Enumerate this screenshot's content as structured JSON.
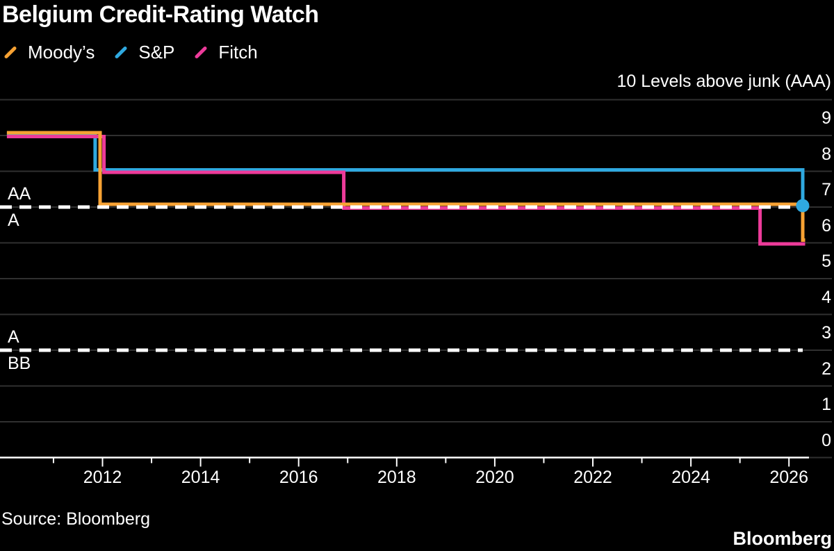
{
  "header": {
    "title": "Belgium Credit-Rating Watch"
  },
  "chart_data": {
    "type": "line",
    "title": "Belgium Credit-Rating Watch",
    "right_axis_label": "10 Levels above junk (AAA)",
    "ylabel": "Levels above junk (AAA = 10)",
    "xlabel": "",
    "ylim": [
      0,
      10.4
    ],
    "xlim": [
      2009.9,
      2026.45
    ],
    "grid": "horizontal",
    "legend_position": "top-left",
    "y_ticks": [
      9,
      8,
      7,
      6,
      5,
      4,
      3,
      2,
      1,
      0
    ],
    "x_major_ticks": [
      2012,
      2014,
      2016,
      2018,
      2020,
      2022,
      2024,
      2026
    ],
    "x_minor_ticks": [
      2011,
      2012,
      2013,
      2014,
      2015,
      2016,
      2017,
      2018,
      2019,
      2020,
      2021,
      2022,
      2023,
      2024,
      2025,
      2026
    ],
    "series": [
      {
        "name": "Moody’s",
        "color": "#F7A233",
        "points": [
          [
            2010.05,
            9
          ],
          [
            2011.95,
            9
          ],
          [
            2011.95,
            7
          ],
          [
            2026.28,
            7
          ],
          [
            2026.28,
            6
          ],
          [
            2026.33,
            6
          ]
        ]
      },
      {
        "name": "S&P",
        "color": "#2FA9E0",
        "end_dot": true,
        "points": [
          [
            2010.05,
            9
          ],
          [
            2011.85,
            9
          ],
          [
            2011.85,
            8
          ],
          [
            2026.28,
            8
          ],
          [
            2026.28,
            7
          ]
        ]
      },
      {
        "name": "Fitch",
        "color": "#ED3B9A",
        "points": [
          [
            2010.05,
            9
          ],
          [
            2012.03,
            9
          ],
          [
            2012.03,
            8
          ],
          [
            2016.92,
            8
          ],
          [
            2016.92,
            7
          ],
          [
            2025.41,
            7
          ],
          [
            2025.41,
            6
          ],
          [
            2026.33,
            6
          ]
        ]
      }
    ],
    "thresholds": [
      {
        "level": 7,
        "label_above": "AA",
        "label_below": "A"
      },
      {
        "level": 3,
        "label_above": "A",
        "label_below": "BB"
      }
    ]
  },
  "footer": {
    "source": "Source: Bloomberg",
    "brand": "Bloomberg"
  },
  "colors": {
    "background": "#000000",
    "grid": "#303030",
    "axis": "#FFFFFF",
    "text": "#FFFFFF",
    "threshold_dash": "#FFFFFF"
  }
}
